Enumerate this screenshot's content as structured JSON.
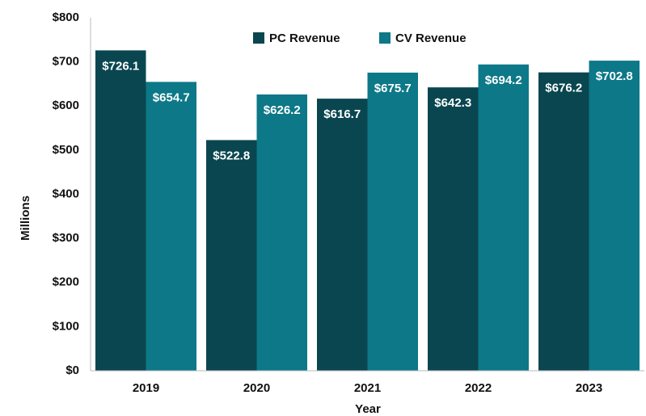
{
  "chart_data": {
    "type": "bar",
    "categories": [
      "2019",
      "2020",
      "2021",
      "2022",
      "2023"
    ],
    "series": [
      {
        "name": "PC Revenue",
        "color": "#0a4650",
        "values": [
          726.1,
          522.8,
          616.7,
          642.3,
          676.2
        ],
        "value_labels": [
          "$726.1",
          "$522.8",
          "$616.7",
          "$642.3",
          "$676.2"
        ]
      },
      {
        "name": "CV Revenue",
        "color": "#0c7888",
        "values": [
          654.7,
          626.2,
          675.7,
          694.2,
          702.8
        ],
        "value_labels": [
          "$654.7",
          "$626.2",
          "$675.7",
          "$694.2",
          "$702.8"
        ]
      }
    ],
    "x_label": "Year",
    "y_label": "Millions",
    "ylim": [
      0,
      800
    ],
    "yticks": [
      {
        "value": 0,
        "label": "$0"
      },
      {
        "value": 100,
        "label": "$100"
      },
      {
        "value": 200,
        "label": "$200"
      },
      {
        "value": 300,
        "label": "$300"
      },
      {
        "value": 400,
        "label": "$400"
      },
      {
        "value": 500,
        "label": "$500"
      },
      {
        "value": 600,
        "label": "$600"
      },
      {
        "value": 700,
        "label": "$700"
      },
      {
        "value": 800,
        "label": "$800"
      }
    ],
    "grid": false,
    "legend": "top"
  }
}
